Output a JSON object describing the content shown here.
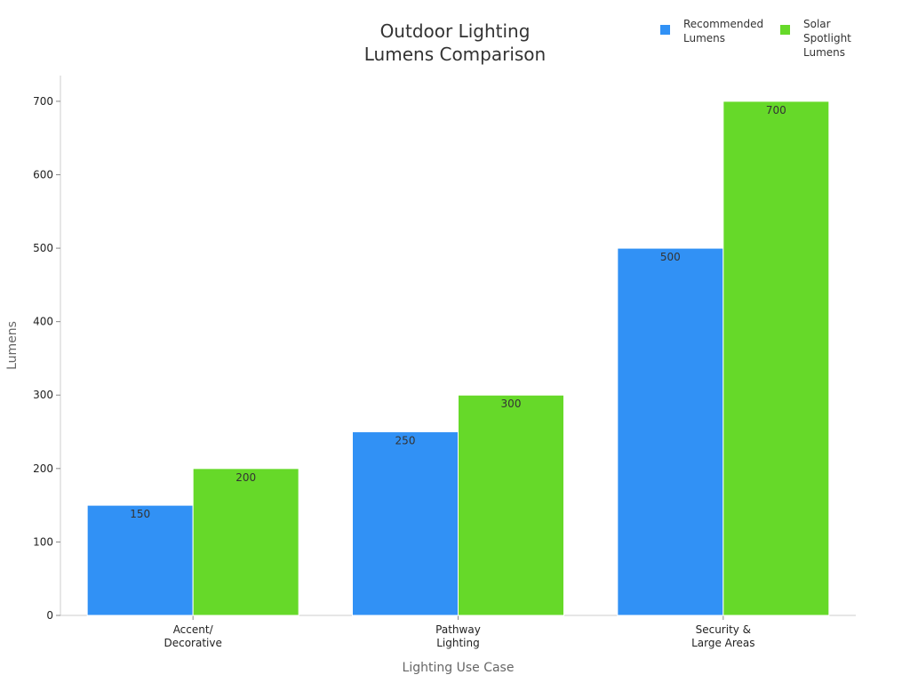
{
  "chart_data": {
    "type": "bar",
    "title": [
      "Outdoor Lighting",
      "Lumens Comparison"
    ],
    "xlabel": "Lighting Use Case",
    "ylabel": "Lumens",
    "categories": [
      [
        "Accent/",
        "Decorative"
      ],
      [
        "Pathway",
        "Lighting"
      ],
      [
        "Security &",
        "Large Areas"
      ]
    ],
    "series": [
      {
        "name": [
          "Recommended",
          "Lumens"
        ],
        "color": "#3191f5",
        "values": [
          150,
          250,
          500
        ]
      },
      {
        "name": [
          "Solar",
          "Spotlight",
          "Lumens"
        ],
        "color": "#66d929",
        "values": [
          200,
          300,
          700
        ]
      }
    ],
    "ylim": [
      0,
      735
    ],
    "yticks": [
      0,
      100,
      200,
      300,
      400,
      500,
      600,
      700
    ],
    "grid": false,
    "legend_position": "top-right"
  }
}
